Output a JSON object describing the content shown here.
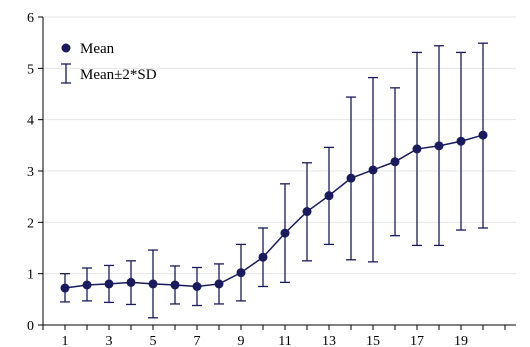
{
  "chart_data": {
    "type": "line",
    "title": "",
    "xlabel": "",
    "ylabel": "",
    "x": [
      1,
      2,
      3,
      4,
      5,
      6,
      7,
      8,
      9,
      10,
      11,
      12,
      13,
      14,
      15,
      16,
      17,
      18,
      19,
      20
    ],
    "xlim": [
      0,
      21.5
    ],
    "ylim": [
      0,
      6
    ],
    "x_ticks": [
      1,
      3,
      5,
      7,
      9,
      11,
      13,
      15,
      17,
      19
    ],
    "y_ticks": [
      0,
      1,
      2,
      3,
      4,
      5,
      6
    ],
    "grid": true,
    "legend_position": "top-left",
    "colors": {
      "series": "#1a1a5e",
      "grid": "#e6e6e6",
      "axis": "#000000"
    },
    "series": [
      {
        "name": "Mean",
        "values": [
          0.72,
          0.78,
          0.8,
          0.83,
          0.8,
          0.78,
          0.75,
          0.8,
          1.02,
          1.32,
          1.79,
          2.21,
          2.52,
          2.86,
          3.02,
          3.18,
          3.43,
          3.49,
          3.58,
          3.7
        ],
        "error_low": [
          0.45,
          0.47,
          0.44,
          0.4,
          0.14,
          0.41,
          0.38,
          0.41,
          0.47,
          0.75,
          0.83,
          1.25,
          1.57,
          1.27,
          1.23,
          1.74,
          1.55,
          1.55,
          1.85,
          1.89
        ],
        "error_high": [
          1.0,
          1.11,
          1.16,
          1.25,
          1.46,
          1.15,
          1.12,
          1.19,
          1.57,
          1.89,
          2.75,
          3.16,
          3.46,
          4.44,
          4.82,
          4.62,
          5.31,
          5.44,
          5.31,
          5.49
        ]
      }
    ],
    "legend": [
      {
        "label": "Mean",
        "symbol": "marker"
      },
      {
        "label": "Mean±2*SD",
        "symbol": "errorbar"
      }
    ]
  }
}
